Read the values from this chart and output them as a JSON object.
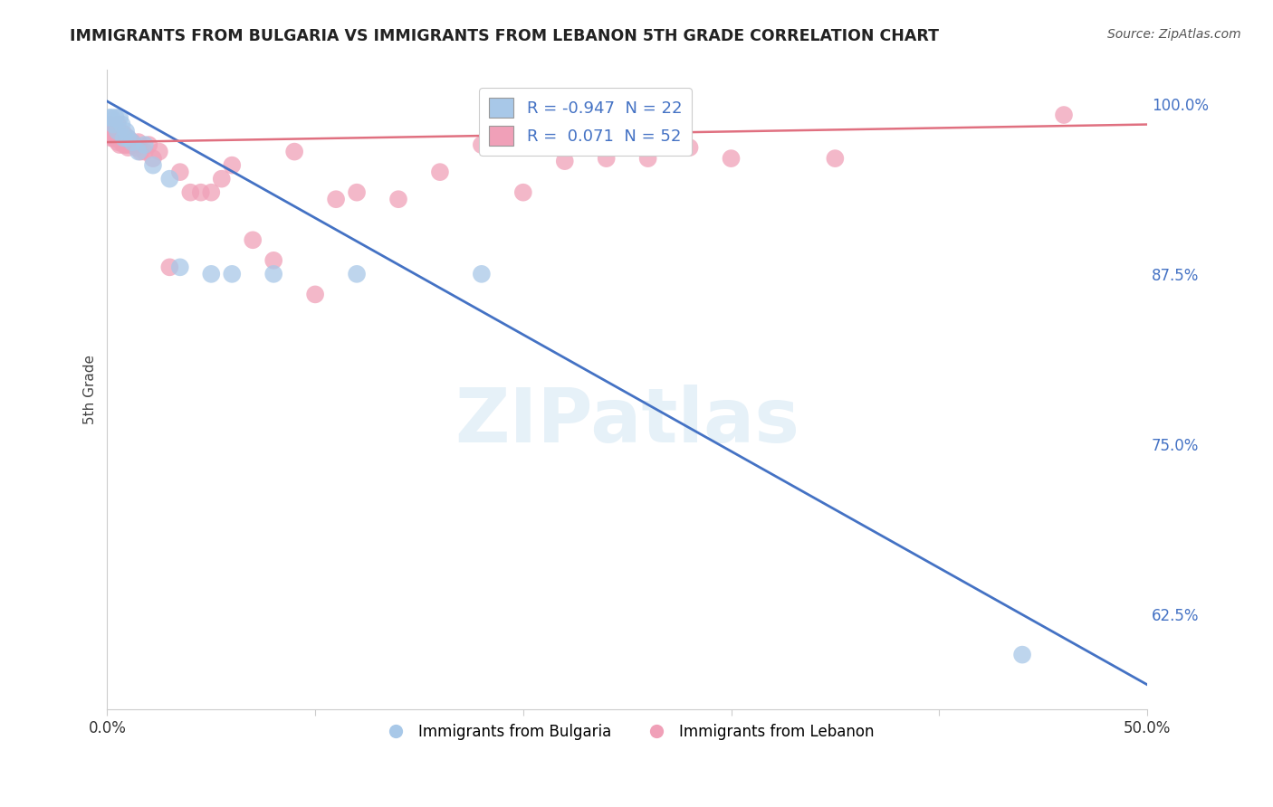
{
  "title": "IMMIGRANTS FROM BULGARIA VS IMMIGRANTS FROM LEBANON 5TH GRADE CORRELATION CHART",
  "source": "Source: ZipAtlas.com",
  "ylabel": "5th Grade",
  "xlim": [
    0.0,
    0.5
  ],
  "ylim": [
    0.555,
    1.025
  ],
  "yticks_right": [
    0.625,
    0.75,
    0.875,
    1.0
  ],
  "ytick_right_labels": [
    "62.5%",
    "75.0%",
    "87.5%",
    "100.0%"
  ],
  "grid_color": "#cccccc",
  "bg_color": "#ffffff",
  "bulgaria_color": "#a8c8e8",
  "lebanon_color": "#f0a0b8",
  "bulgaria_line_color": "#4472c4",
  "lebanon_line_color": "#e07080",
  "legend_R_label1": "R = -0.947  N = 22",
  "legend_R_label2": "R =  0.071  N = 52",
  "watermark": "ZIPatlas",
  "bul_line_x0": 0.0,
  "bul_line_y0": 1.002,
  "bul_line_x1": 0.5,
  "bul_line_y1": 0.573,
  "leb_line_x0": 0.0,
  "leb_line_y0": 0.972,
  "leb_line_x1": 0.5,
  "leb_line_y1": 0.985,
  "bulgaria_points_x": [
    0.001,
    0.002,
    0.003,
    0.004,
    0.005,
    0.006,
    0.007,
    0.008,
    0.009,
    0.01,
    0.012,
    0.015,
    0.018,
    0.022,
    0.03,
    0.035,
    0.05,
    0.06,
    0.08,
    0.12,
    0.18,
    0.44
  ],
  "bulgaria_points_y": [
    0.99,
    0.99,
    0.985,
    0.99,
    0.98,
    0.99,
    0.985,
    0.975,
    0.98,
    0.975,
    0.972,
    0.965,
    0.97,
    0.955,
    0.945,
    0.88,
    0.875,
    0.875,
    0.875,
    0.875,
    0.875,
    0.595
  ],
  "lebanon_points_x": [
    0.001,
    0.002,
    0.002,
    0.003,
    0.003,
    0.004,
    0.004,
    0.005,
    0.005,
    0.006,
    0.006,
    0.007,
    0.007,
    0.008,
    0.008,
    0.009,
    0.01,
    0.01,
    0.011,
    0.012,
    0.013,
    0.014,
    0.015,
    0.016,
    0.018,
    0.02,
    0.022,
    0.025,
    0.03,
    0.035,
    0.04,
    0.045,
    0.05,
    0.055,
    0.06,
    0.07,
    0.08,
    0.09,
    0.1,
    0.11,
    0.12,
    0.14,
    0.16,
    0.18,
    0.2,
    0.22,
    0.24,
    0.26,
    0.28,
    0.3,
    0.35,
    0.46
  ],
  "lebanon_points_y": [
    0.985,
    0.98,
    0.975,
    0.98,
    0.975,
    0.98,
    0.975,
    0.985,
    0.972,
    0.975,
    0.97,
    0.975,
    0.972,
    0.978,
    0.97,
    0.97,
    0.975,
    0.968,
    0.97,
    0.972,
    0.97,
    0.968,
    0.972,
    0.965,
    0.965,
    0.97,
    0.96,
    0.965,
    0.88,
    0.95,
    0.935,
    0.935,
    0.935,
    0.945,
    0.955,
    0.9,
    0.885,
    0.965,
    0.86,
    0.93,
    0.935,
    0.93,
    0.95,
    0.97,
    0.935,
    0.958,
    0.96,
    0.96,
    0.968,
    0.96,
    0.96,
    0.992
  ]
}
